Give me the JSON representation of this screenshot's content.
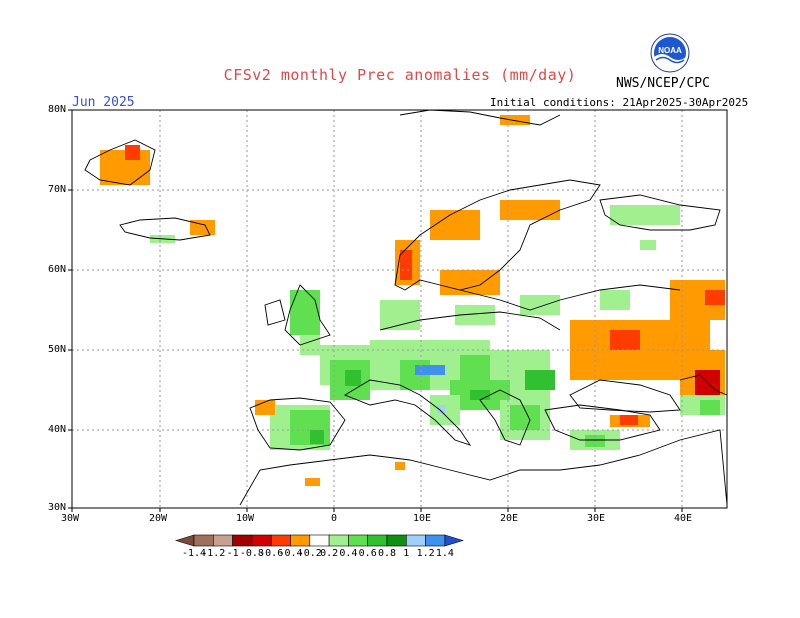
{
  "header": {
    "title": "CFSv2 monthly Prec anomalies (mm/day)",
    "agency": "NWS/NCEP/CPC",
    "month": "Jun 2025",
    "initial_conditions": "Initial conditions: 21Apr2025-30Apr2025"
  },
  "axes": {
    "lon_labels": [
      "30W",
      "20W",
      "10W",
      "0",
      "10E",
      "20E",
      "30E",
      "40E"
    ],
    "lat_labels": [
      "80N",
      "70N",
      "60N",
      "50N",
      "40N",
      "30N"
    ]
  },
  "colorbar": {
    "labels": [
      "-1.4",
      "-1.2",
      "-1",
      "-0.8",
      "-0.6",
      "-0.4",
      "-0.2",
      "0.2",
      "0.4",
      "0.6",
      "0.8",
      "1",
      "1.2",
      "1.4"
    ],
    "colors": [
      "#7a4a3a",
      "#a0705e",
      "#c8a090",
      "#a00000",
      "#d00000",
      "#ff3c00",
      "#ff9a00",
      "#ffffff",
      "#a0f090",
      "#60e050",
      "#30c030",
      "#109010",
      "#a0d0f8",
      "#4090f0",
      "#2050d0"
    ]
  },
  "colors": {
    "title": "#e04848",
    "month": "#3a4fd0",
    "grid": "#9a9a9a"
  },
  "icons": {
    "logo": "noaa-logo"
  }
}
